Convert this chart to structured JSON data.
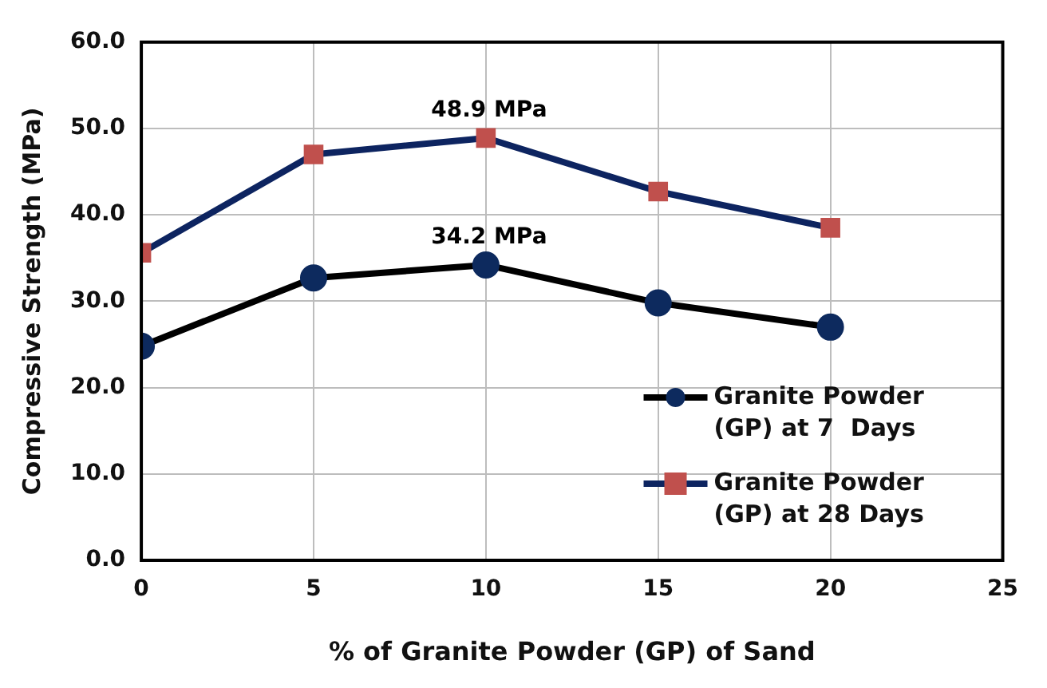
{
  "chart_data": {
    "type": "line",
    "xlabel": "% of Granite Powder (GP) of Sand",
    "ylabel": "Compressive Strength (MPa)",
    "x": [
      0,
      5,
      10,
      15,
      20
    ],
    "series": [
      {
        "name": "Granite Powder (GP) at 7  Days",
        "color": "#000000",
        "colors": [
          "#0d2a5e",
          "#0d2a5e",
          "#0d2a5e",
          "#0d2a5e",
          "#0d2a5e"
        ],
        "marker": "circle",
        "values": [
          24.8,
          32.7,
          34.2,
          29.8,
          27.0
        ]
      },
      {
        "name": "Granite Powder (GP) at 28 Days",
        "color": "#0d2460",
        "colors": [
          "#c0504d",
          "#c0504d",
          "#c0504d",
          "#c0504d",
          "#c0504d"
        ],
        "marker": "square",
        "values": [
          35.6,
          47.0,
          48.9,
          42.7,
          38.5
        ]
      }
    ],
    "xlim": [
      0,
      25
    ],
    "xticks": [
      0,
      5,
      10,
      15,
      20,
      25
    ],
    "ylim": [
      0,
      60
    ],
    "yticks": [
      {
        "value": 0,
        "label": "0.0"
      },
      {
        "value": 10,
        "label": "10.0"
      },
      {
        "value": 20,
        "label": "20.0"
      },
      {
        "value": 30,
        "label": "30.0"
      },
      {
        "value": 40,
        "label": "40.0"
      },
      {
        "value": 50,
        "label": "50.0"
      },
      {
        "value": 60,
        "label": "60.0"
      }
    ],
    "annotations": [
      {
        "text": "48.9 MPa",
        "x": 10,
        "y": 48.9
      },
      {
        "text": "34.2 MPa",
        "x": 10,
        "y": 34.2
      }
    ],
    "grid": true,
    "legend": "bottom right",
    "line_style": "solid"
  }
}
